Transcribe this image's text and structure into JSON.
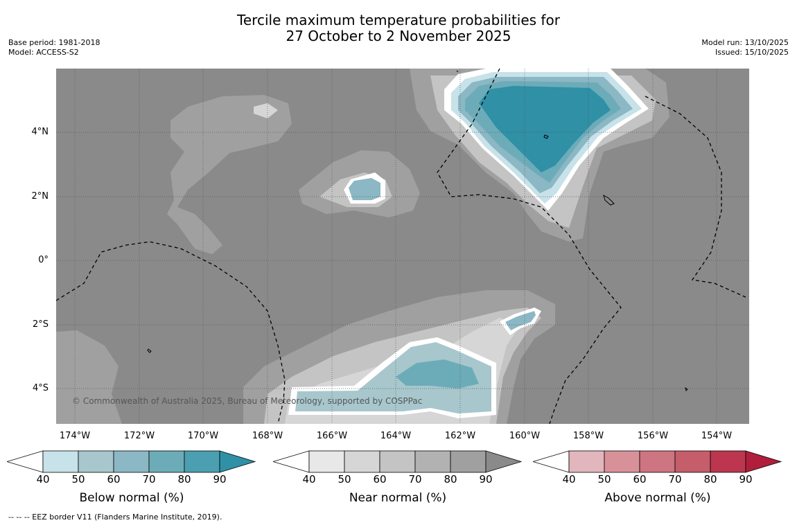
{
  "title": {
    "line1": "Tercile maximum temperature probabilities for",
    "line2": "27 October to 2 November 2025"
  },
  "meta_left": {
    "base_period": "Base period: 1981-2018",
    "model": "Model: ACCESS-S2"
  },
  "meta_right": {
    "model_run": "Model run: 13/10/2025",
    "issued": "Issued: 15/10/2025"
  },
  "map": {
    "latitude_labels": [
      "4°N",
      "2°N",
      "0°",
      "2°S",
      "4°S"
    ],
    "longitude_labels": [
      "174°W",
      "172°W",
      "170°W",
      "168°W",
      "166°W",
      "164°W",
      "162°W",
      "160°W",
      "158°W",
      "156°W",
      "154°W"
    ],
    "copyright": "© Commonwealth of Australia 2025, Bureau of Meteorology, supported by COSPPac"
  },
  "colorbars": [
    {
      "label": "Below normal (%)",
      "ticks": [
        "40",
        "50",
        "60",
        "70",
        "80",
        "90"
      ],
      "colors": [
        "#c7e2e9",
        "#a7c7cd",
        "#8cb7c5",
        "#6cacb8",
        "#4b9fb0",
        "#2f90a6"
      ]
    },
    {
      "label": "Near normal (%)",
      "ticks": [
        "40",
        "50",
        "60",
        "70",
        "80",
        "90"
      ],
      "colors": [
        "#e8e8e8",
        "#d6d6d6",
        "#c4c4c4",
        "#b2b2b2",
        "#a0a0a0",
        "#8a8a8a"
      ]
    },
    {
      "label": "Above normal (%)",
      "ticks": [
        "40",
        "50",
        "60",
        "70",
        "80",
        "90"
      ],
      "colors": [
        "#e2b6bd",
        "#d99199",
        "#cd7581",
        "#c55d6b",
        "#bc3650",
        "#b01e3c"
      ]
    }
  ],
  "footnote": "--  --  -- EEZ border V11 (Flanders Marine Institute, 2019)."
}
